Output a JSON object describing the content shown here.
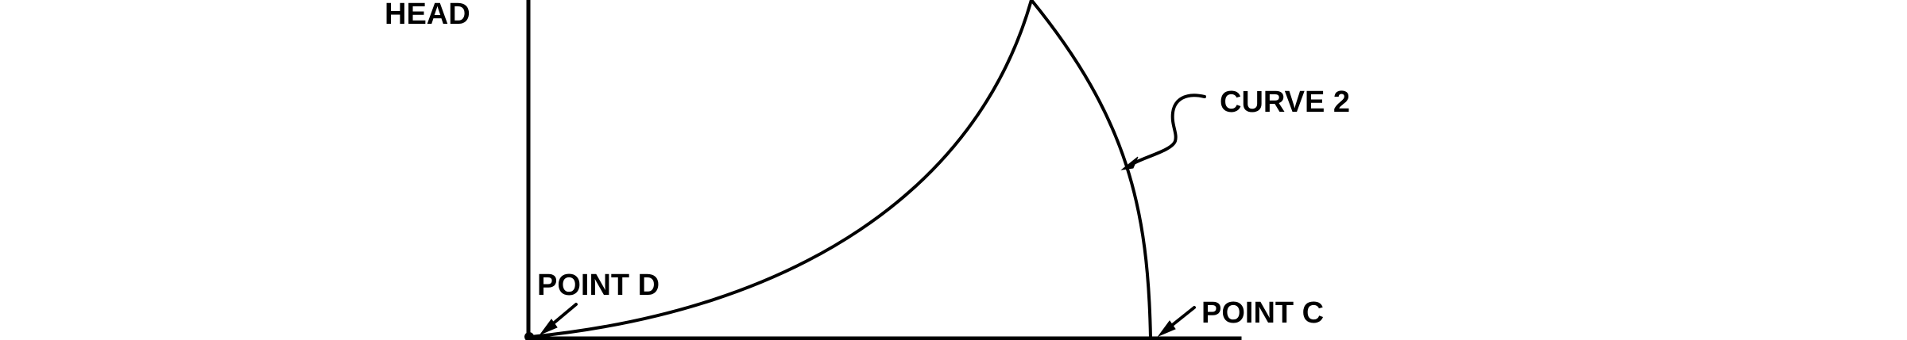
{
  "labels": {
    "y_axis": "HEAD",
    "curve_2": "CURVE 2",
    "point_d": "POINT D",
    "point_c": "POINT C"
  },
  "colors": {
    "ink": "#000000",
    "background": "#ffffff"
  }
}
